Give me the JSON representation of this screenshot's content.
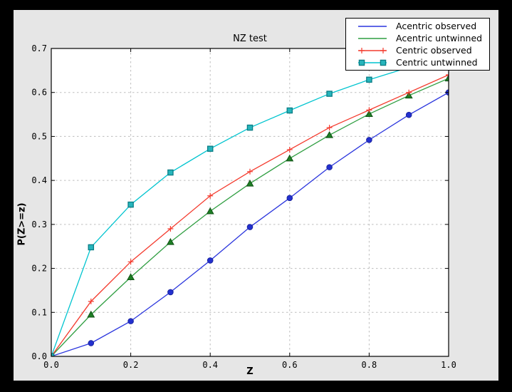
{
  "window": {
    "page_bg": "#000000",
    "figure_bg": "#e6e6e6",
    "plot_bg": "#ffffff",
    "grid_color": "#bdbdbd",
    "axis_color": "#000000"
  },
  "chart_data": {
    "type": "line",
    "title": "NZ test",
    "xlabel": "Z",
    "ylabel": "P(Z>=z)",
    "xlim": [
      0.0,
      1.0
    ],
    "ylim": [
      0.0,
      0.7
    ],
    "xticks": [
      "0.0",
      "0.2",
      "0.4",
      "0.6",
      "0.8",
      "1.0"
    ],
    "yticks": [
      "0.0",
      "0.1",
      "0.2",
      "0.3",
      "0.4",
      "0.5",
      "0.6",
      "0.7"
    ],
    "grid": true,
    "grid_style": "dashed",
    "legend_position": "upper right",
    "x": [
      0.0,
      0.1,
      0.2,
      0.3,
      0.4,
      0.5,
      0.6,
      0.7,
      0.8,
      0.9,
      1.0
    ],
    "series": [
      {
        "name": "Acentric observed",
        "color": "#2a35dd",
        "marker": "circle",
        "marker_fill": "#2330cf",
        "marker_edge": "#1a249e",
        "legend_markers": false,
        "values": [
          0.0,
          0.03,
          0.08,
          0.146,
          0.218,
          0.294,
          0.36,
          0.43,
          0.492,
          0.549,
          0.6
        ]
      },
      {
        "name": "Acentric untwinned",
        "color": "#2f9e41",
        "marker": "triangle",
        "marker_fill": "#1d7f24",
        "marker_edge": "#115216",
        "legend_markers": false,
        "values": [
          0.0,
          0.095,
          0.18,
          0.26,
          0.33,
          0.393,
          0.45,
          0.503,
          0.551,
          0.593,
          0.632
        ]
      },
      {
        "name": "Centric observed",
        "color": "#f43b2e",
        "marker": "plus",
        "marker_fill": "#f43b2e",
        "marker_edge": "#f43b2e",
        "legend_markers": true,
        "values": [
          0.0,
          0.125,
          0.215,
          0.29,
          0.365,
          0.42,
          0.47,
          0.52,
          0.56,
          0.6,
          0.64
        ]
      },
      {
        "name": "Centric untwinned",
        "color": "#00c4cf",
        "marker": "square",
        "marker_fill": "#27b5bc",
        "marker_edge": "#0a7d85",
        "legend_markers": true,
        "values": [
          0.0,
          0.248,
          0.345,
          0.418,
          0.472,
          0.52,
          0.559,
          0.597,
          0.629,
          0.657,
          0.683
        ]
      }
    ]
  }
}
